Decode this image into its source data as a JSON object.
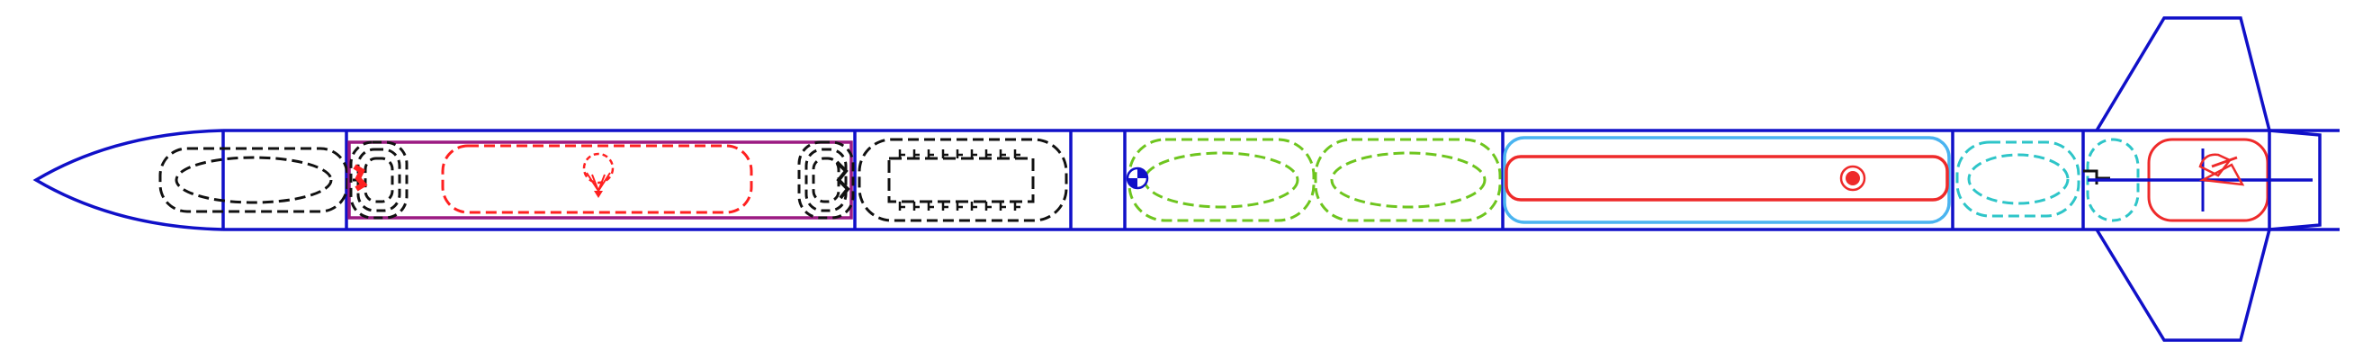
{
  "diagram": {
    "type": "rocket-component-schematic",
    "orientation": "horizontal",
    "nose_direction": "left",
    "colors": {
      "background": "#ffffff",
      "airframe": "#1010c8",
      "inner_tube": "#9b1a82",
      "parachute_shockcord": "#ff2020",
      "recovery_wadding": "#111111",
      "mass_component": "#6ec51e",
      "motor_casing": "#4ab4f0",
      "motor_grain": "#ee2a2a",
      "launch_lug": "#2ec5c8",
      "fin": "#1010c8"
    },
    "components": [
      {
        "name": "nose-cone",
        "kind": "nose"
      },
      {
        "name": "nose-shoulder",
        "kind": "tube-section"
      },
      {
        "name": "nose-mass",
        "kind": "mass-object"
      },
      {
        "name": "upper-body-tube",
        "kind": "body-tube"
      },
      {
        "name": "inner-tube",
        "kind": "inner-tube"
      },
      {
        "name": "parachute",
        "kind": "parachute"
      },
      {
        "name": "shock-cord-front",
        "kind": "shock-cord"
      },
      {
        "name": "shock-cord-rear",
        "kind": "shock-cord"
      },
      {
        "name": "avionics-bay",
        "kind": "tube-section"
      },
      {
        "name": "avionics-board",
        "kind": "electronics"
      },
      {
        "name": "coupler",
        "kind": "tube-section"
      },
      {
        "name": "mass-front",
        "kind": "mass-object"
      },
      {
        "name": "mass-rear",
        "kind": "mass-object"
      },
      {
        "name": "center-of-gravity",
        "kind": "marker"
      },
      {
        "name": "motor-mount",
        "kind": "motor-mount"
      },
      {
        "name": "motor",
        "kind": "motor"
      },
      {
        "name": "center-of-pressure",
        "kind": "marker"
      },
      {
        "name": "launch-lug",
        "kind": "launch-lug"
      },
      {
        "name": "fin-can",
        "kind": "tube-section"
      },
      {
        "name": "fins",
        "kind": "fin-set",
        "count": 3
      },
      {
        "name": "tail-cone",
        "kind": "boattail"
      }
    ]
  }
}
